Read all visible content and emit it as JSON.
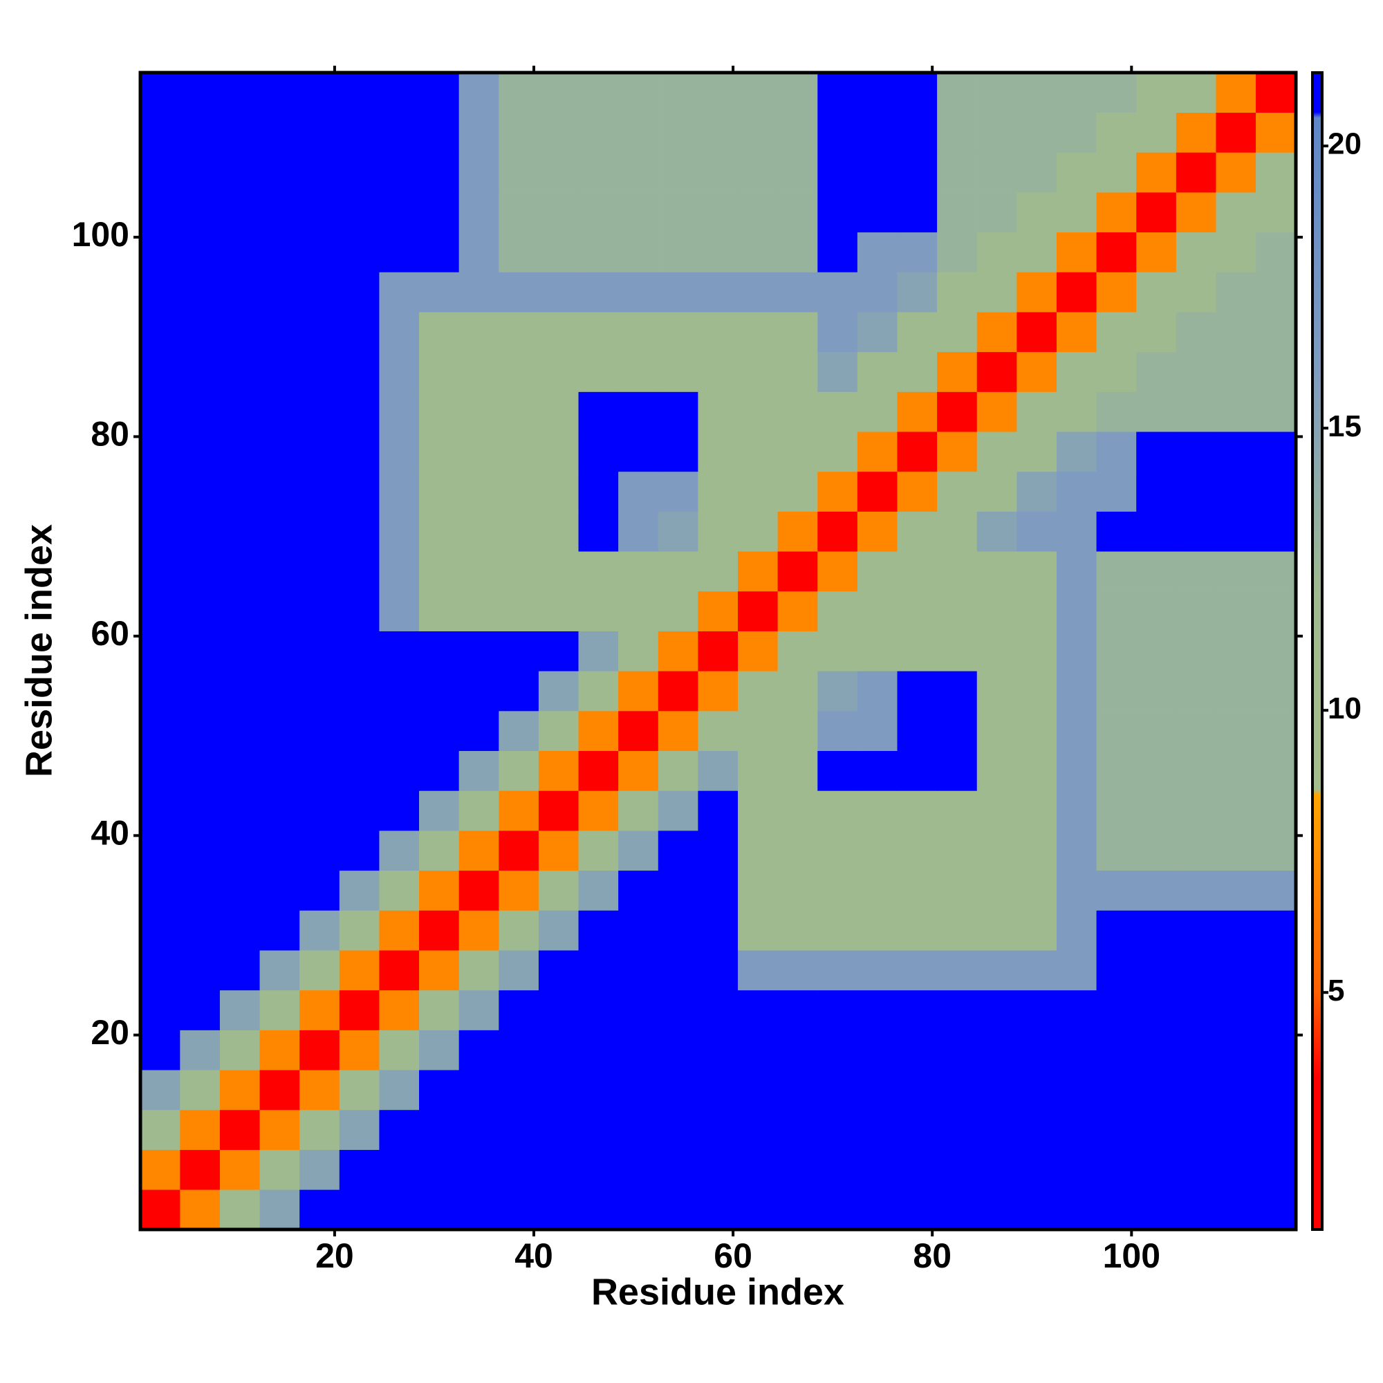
{
  "chart_data": {
    "type": "heatmap",
    "xlabel": "Residue index",
    "ylabel": "Residue index",
    "xlim": [
      0.5,
      116.5
    ],
    "ylim": [
      0.5,
      116.5
    ],
    "xticks": [
      20,
      40,
      60,
      80,
      100
    ],
    "yticks": [
      20,
      40,
      60,
      80,
      100
    ],
    "xbins": [
      0.5,
      4.5,
      8.5,
      12.5,
      16.5,
      20.5,
      24.5,
      28.5,
      32.5,
      36.5,
      40.5,
      44.5,
      48.5,
      52.5,
      56.5,
      60.5,
      64.5,
      68.5,
      72.5,
      76.5,
      80.5,
      84.5,
      88.5,
      92.5,
      96.5,
      100.5,
      104.5,
      108.5,
      112.5,
      116.5
    ],
    "ybins": [
      0.5,
      4.5,
      8.5,
      12.5,
      16.5,
      20.5,
      24.5,
      28.5,
      32.5,
      36.5,
      40.5,
      44.5,
      48.5,
      52.5,
      56.5,
      60.5,
      64.5,
      68.5,
      72.5,
      76.5,
      80.5,
      84.5,
      88.5,
      92.5,
      96.5,
      100.5,
      104.5,
      108.5,
      112.5,
      116.5
    ],
    "z": [
      [
        2,
        7,
        12,
        15,
        21,
        21,
        21,
        21,
        21,
        21,
        21,
        21,
        21,
        21,
        21,
        21,
        21,
        21,
        21,
        21,
        21,
        21,
        21,
        21,
        21,
        21,
        21,
        21,
        21
      ],
      [
        7,
        2,
        7,
        12,
        15,
        21,
        21,
        21,
        21,
        21,
        21,
        21,
        21,
        21,
        21,
        21,
        21,
        21,
        21,
        21,
        21,
        21,
        21,
        21,
        21,
        21,
        21,
        21,
        21
      ],
      [
        12,
        7,
        2,
        7,
        12,
        15,
        21,
        21,
        21,
        21,
        21,
        21,
        21,
        21,
        21,
        21,
        21,
        21,
        21,
        21,
        21,
        21,
        21,
        21,
        21,
        21,
        21,
        21,
        21
      ],
      [
        15,
        12,
        7,
        2,
        7,
        12,
        15,
        21,
        21,
        21,
        21,
        21,
        21,
        21,
        21,
        21,
        21,
        21,
        21,
        21,
        21,
        21,
        21,
        21,
        21,
        21,
        21,
        21,
        21
      ],
      [
        21,
        15,
        12,
        7,
        2,
        7,
        12,
        15,
        21,
        21,
        21,
        21,
        21,
        21,
        21,
        21,
        21,
        21,
        21,
        21,
        21,
        21,
        21,
        21,
        21,
        21,
        21,
        21,
        21
      ],
      [
        21,
        21,
        15,
        12,
        7,
        2,
        7,
        12,
        15,
        21,
        21,
        21,
        21,
        21,
        21,
        21,
        21,
        21,
        21,
        21,
        21,
        21,
        21,
        21,
        21,
        21,
        21,
        21,
        21
      ],
      [
        21,
        21,
        21,
        15,
        12,
        7,
        2,
        7,
        12,
        15,
        21,
        21,
        21,
        21,
        21,
        16,
        16,
        16,
        16,
        16,
        16,
        16,
        16,
        16,
        21,
        21,
        21,
        21,
        21
      ],
      [
        21,
        21,
        21,
        21,
        15,
        12,
        7,
        2,
        7,
        12,
        15,
        21,
        21,
        21,
        21,
        12,
        12,
        12,
        12,
        12,
        12,
        12,
        12,
        16,
        21,
        21,
        21,
        21,
        21
      ],
      [
        21,
        21,
        21,
        21,
        21,
        15,
        12,
        7,
        2,
        7,
        12,
        15,
        21,
        21,
        21,
        12,
        12,
        12,
        12,
        12,
        12,
        12,
        12,
        16,
        16,
        16,
        16,
        16,
        16
      ],
      [
        21,
        21,
        21,
        21,
        21,
        21,
        15,
        12,
        7,
        2,
        7,
        12,
        15,
        21,
        21,
        12,
        12,
        12,
        12,
        12,
        12,
        12,
        12,
        16,
        13,
        13,
        13,
        13,
        13
      ],
      [
        21,
        21,
        21,
        21,
        21,
        21,
        21,
        15,
        12,
        7,
        2,
        7,
        12,
        15,
        21,
        12,
        12,
        12,
        12,
        12,
        12,
        12,
        12,
        16,
        13,
        13,
        13,
        13,
        13
      ],
      [
        21,
        21,
        21,
        21,
        21,
        21,
        21,
        21,
        15,
        12,
        7,
        2,
        7,
        12,
        15,
        12,
        12,
        21,
        21,
        21,
        21,
        12,
        12,
        16,
        13,
        13,
        13,
        13,
        13
      ],
      [
        21,
        21,
        21,
        21,
        21,
        21,
        21,
        21,
        21,
        15,
        12,
        7,
        2,
        7,
        12,
        12,
        12,
        16,
        16,
        21,
        21,
        12,
        12,
        16,
        13,
        13,
        13,
        13,
        13
      ],
      [
        21,
        21,
        21,
        21,
        21,
        21,
        21,
        21,
        21,
        21,
        15,
        12,
        7,
        2,
        7,
        12,
        12,
        15,
        16,
        21,
        21,
        12,
        12,
        16,
        13,
        13,
        13,
        13,
        13
      ],
      [
        21,
        21,
        21,
        21,
        21,
        21,
        21,
        21,
        21,
        21,
        21,
        15,
        12,
        7,
        2,
        7,
        12,
        12,
        12,
        12,
        12,
        12,
        12,
        16,
        13,
        13,
        13,
        13,
        13
      ],
      [
        21,
        21,
        21,
        21,
        21,
        21,
        16,
        12,
        12,
        12,
        12,
        12,
        12,
        12,
        7,
        2,
        7,
        12,
        12,
        12,
        12,
        12,
        12,
        16,
        13,
        13,
        13,
        13,
        13
      ],
      [
        21,
        21,
        21,
        21,
        21,
        21,
        16,
        12,
        12,
        12,
        12,
        12,
        12,
        12,
        12,
        7,
        2,
        7,
        12,
        12,
        12,
        12,
        12,
        16,
        13,
        13,
        13,
        13,
        13
      ],
      [
        21,
        21,
        21,
        21,
        21,
        21,
        16,
        12,
        12,
        12,
        12,
        21,
        16,
        15,
        12,
        12,
        7,
        2,
        7,
        12,
        12,
        15,
        16,
        16,
        21,
        21,
        21,
        21,
        21
      ],
      [
        21,
        21,
        21,
        21,
        21,
        21,
        16,
        12,
        12,
        12,
        12,
        21,
        16,
        16,
        12,
        12,
        12,
        7,
        2,
        7,
        12,
        12,
        15,
        16,
        16,
        21,
        21,
        21,
        21
      ],
      [
        21,
        21,
        21,
        21,
        21,
        21,
        16,
        12,
        12,
        12,
        12,
        21,
        21,
        21,
        12,
        12,
        12,
        12,
        7,
        2,
        7,
        12,
        12,
        15,
        16,
        21,
        21,
        21,
        21
      ],
      [
        21,
        21,
        21,
        21,
        21,
        21,
        16,
        12,
        12,
        12,
        12,
        21,
        21,
        21,
        12,
        12,
        12,
        12,
        12,
        7,
        2,
        7,
        12,
        12,
        13,
        13,
        13,
        13,
        13
      ],
      [
        21,
        21,
        21,
        21,
        21,
        21,
        16,
        12,
        12,
        12,
        12,
        12,
        12,
        12,
        12,
        12,
        12,
        15,
        12,
        12,
        7,
        2,
        7,
        12,
        12,
        13,
        13,
        13,
        13
      ],
      [
        21,
        21,
        21,
        21,
        21,
        21,
        16,
        12,
        12,
        12,
        12,
        12,
        12,
        12,
        12,
        12,
        12,
        16,
        15,
        12,
        12,
        7,
        2,
        7,
        12,
        12,
        13,
        13,
        13
      ],
      [
        21,
        21,
        21,
        21,
        21,
        21,
        16,
        16,
        16,
        16,
        16,
        16,
        16,
        16,
        16,
        16,
        16,
        16,
        16,
        15,
        12,
        12,
        7,
        2,
        7,
        12,
        12,
        13,
        13
      ],
      [
        21,
        21,
        21,
        21,
        21,
        21,
        21,
        21,
        16,
        13,
        13,
        13,
        13,
        13,
        13,
        13,
        13,
        21,
        16,
        16,
        13,
        12,
        12,
        7,
        2,
        7,
        12,
        12,
        13
      ],
      [
        21,
        21,
        21,
        21,
        21,
        21,
        21,
        21,
        16,
        13,
        13,
        13,
        13,
        13,
        13,
        13,
        13,
        21,
        21,
        21,
        13,
        13,
        12,
        12,
        7,
        2,
        7,
        12,
        12
      ],
      [
        21,
        21,
        21,
        21,
        21,
        21,
        21,
        21,
        16,
        13,
        13,
        13,
        13,
        13,
        13,
        13,
        13,
        21,
        21,
        21,
        13,
        13,
        13,
        12,
        12,
        7,
        2,
        7,
        12
      ],
      [
        21,
        21,
        21,
        21,
        21,
        21,
        21,
        21,
        16,
        13,
        13,
        13,
        13,
        13,
        13,
        13,
        13,
        21,
        21,
        21,
        13,
        13,
        13,
        13,
        12,
        12,
        7,
        2,
        7
      ],
      [
        21,
        21,
        21,
        21,
        21,
        21,
        21,
        21,
        16,
        13,
        13,
        13,
        13,
        13,
        13,
        13,
        13,
        21,
        21,
        21,
        13,
        13,
        13,
        13,
        13,
        12,
        12,
        7,
        2
      ]
    ],
    "colorscale": [
      [
        0.8,
        "#ff0000"
      ],
      [
        3.5,
        "#ff0000"
      ],
      [
        5,
        "#ff6000"
      ],
      [
        8.5,
        "#ffa500"
      ],
      [
        8.6,
        "#a4bd8c"
      ],
      [
        12,
        "#a0ba90"
      ],
      [
        16,
        "#7f9cc0"
      ],
      [
        20.5,
        "#5f86c8"
      ],
      [
        20.6,
        "#0000ff"
      ],
      [
        21.3,
        "#0000ff"
      ]
    ],
    "colorbar": {
      "zlim": [
        0.8,
        21.3
      ],
      "ticks": [
        5,
        10,
        15,
        20
      ]
    }
  }
}
